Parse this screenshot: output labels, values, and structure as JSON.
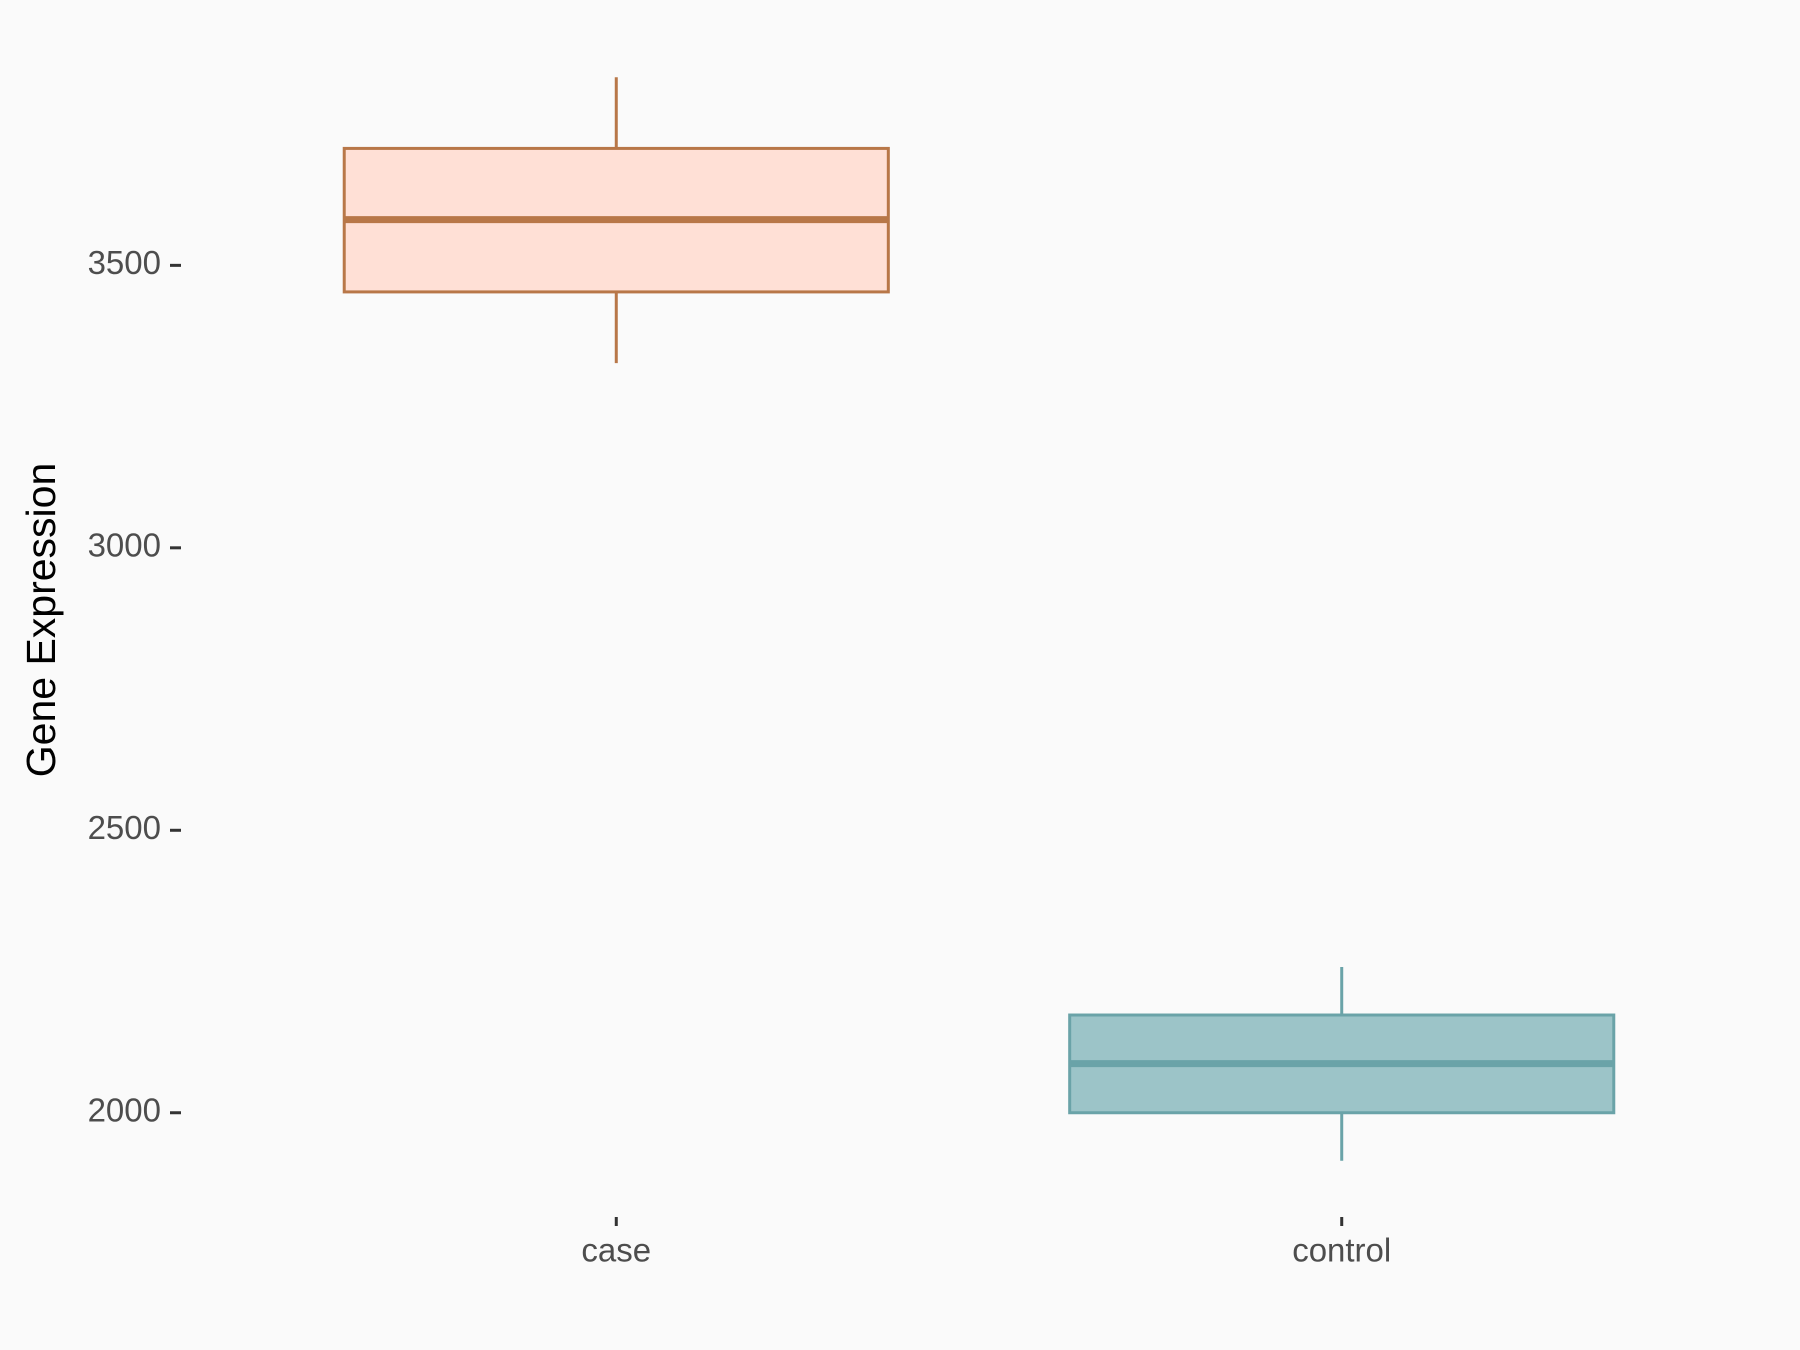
{
  "chart_data": {
    "type": "box",
    "y_label": "Gene Expression",
    "categories": [
      "case",
      "control"
    ],
    "boxes": [
      {
        "whisker_low": 3327,
        "q1": 3453,
        "median": 3581,
        "q3": 3707,
        "whisker_high": 3833,
        "fill": "#ffe0d6",
        "color": "#b87748"
      },
      {
        "whisker_low": 1915,
        "q1": 2000,
        "median": 2087,
        "q3": 2173,
        "whisker_high": 2258,
        "fill": "#9cc4c8",
        "color": "#6aa3a8"
      }
    ],
    "ylim": [
      1819,
      3929
    ],
    "yticks": [
      2000,
      2500,
      3000,
      3500
    ],
    "grid": false
  }
}
